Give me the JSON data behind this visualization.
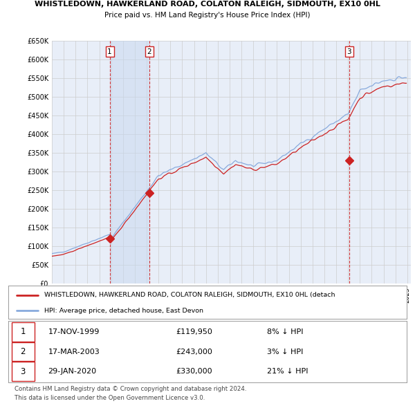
{
  "title": "WHISTLEDOWN, HAWKERLAND ROAD, COLATON RALEIGH, SIDMOUTH, EX10 0HL",
  "subtitle": "Price paid vs. HM Land Registry's House Price Index (HPI)",
  "ylabel_ticks": [
    "£0",
    "£50K",
    "£100K",
    "£150K",
    "£200K",
    "£250K",
    "£300K",
    "£350K",
    "£400K",
    "£450K",
    "£500K",
    "£550K",
    "£600K",
    "£650K"
  ],
  "ylim": [
    0,
    650000
  ],
  "ytick_vals": [
    0,
    50000,
    100000,
    150000,
    200000,
    250000,
    300000,
    350000,
    400000,
    450000,
    500000,
    550000,
    600000,
    650000
  ],
  "hpi_color": "#88aadd",
  "price_color": "#cc2222",
  "sale_marker_color": "#cc2222",
  "grid_color": "#cccccc",
  "bg_color": "#ffffff",
  "plot_bg_color": "#e8eef8",
  "sale_line_color": "#cc2222",
  "shade_color": "#dde8f5",
  "sale_points": [
    {
      "price": 119950,
      "label": "1",
      "year": 1999.88
    },
    {
      "price": 243000,
      "label": "2",
      "year": 2003.21
    },
    {
      "price": 330000,
      "label": "3",
      "year": 2020.08
    }
  ],
  "legend_entries": [
    {
      "label": "WHISTLEDOWN, HAWKERLAND ROAD, COLATON RALEIGH, SIDMOUTH, EX10 0HL (detach",
      "color": "#cc2222"
    },
    {
      "label": "HPI: Average price, detached house, East Devon",
      "color": "#88aadd"
    }
  ],
  "table_rows": [
    {
      "num": "1",
      "date": "17-NOV-1999",
      "price": "£119,950",
      "hpi": "8% ↓ HPI"
    },
    {
      "num": "2",
      "date": "17-MAR-2003",
      "price": "£243,000",
      "hpi": "3% ↓ HPI"
    },
    {
      "num": "3",
      "date": "29-JAN-2020",
      "price": "£330,000",
      "hpi": "21% ↓ HPI"
    }
  ],
  "footer": [
    "Contains HM Land Registry data © Crown copyright and database right 2024.",
    "This data is licensed under the Open Government Licence v3.0."
  ],
  "x_start_year": 1995,
  "x_end_year": 2025
}
